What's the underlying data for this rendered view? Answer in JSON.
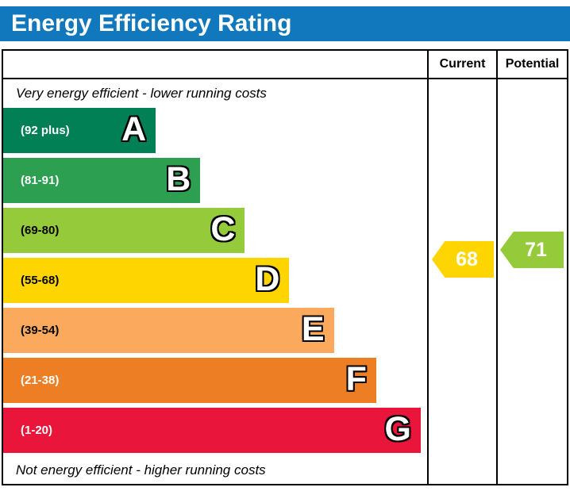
{
  "title": "Energy Efficiency Rating",
  "colors": {
    "header_blue": "#1278be"
  },
  "chart_data": {
    "type": "bar",
    "title": "Energy Efficiency Rating",
    "top_caption": "Very energy efficient - lower running costs",
    "bottom_caption": "Not energy efficient - higher running costs",
    "columns": {
      "current": "Current",
      "potential": "Potential"
    },
    "bands": [
      {
        "letter": "A",
        "range": "(92 plus)",
        "min": 92,
        "max": 100,
        "color": "#008054",
        "text_color": "#ffffff",
        "width": "36%"
      },
      {
        "letter": "B",
        "range": "(81-91)",
        "min": 81,
        "max": 91,
        "color": "#2c9f50",
        "text_color": "#ffffff",
        "width": "46.5%"
      },
      {
        "letter": "C",
        "range": "(69-80)",
        "min": 69,
        "max": 80,
        "color": "#95ca3b",
        "text_color": "#000000",
        "width": "57%"
      },
      {
        "letter": "D",
        "range": "(55-68)",
        "min": 55,
        "max": 68,
        "color": "#ffd500",
        "text_color": "#000000",
        "width": "67.5%"
      },
      {
        "letter": "E",
        "range": "(39-54)",
        "min": 39,
        "max": 54,
        "color": "#fbaa5d",
        "text_color": "#000000",
        "width": "78%"
      },
      {
        "letter": "F",
        "range": "(21-38)",
        "min": 21,
        "max": 38,
        "color": "#ee7e23",
        "text_color": "#ffffff",
        "width": "88%"
      },
      {
        "letter": "G",
        "range": "(1-20)",
        "min": 1,
        "max": 20,
        "color": "#e9153b",
        "text_color": "#ffffff",
        "width": "98.5%"
      }
    ],
    "current": {
      "value": "68",
      "band": "D",
      "color": "#ffd500"
    },
    "potential": {
      "value": "71",
      "band": "C",
      "color": "#95ca3b"
    }
  }
}
